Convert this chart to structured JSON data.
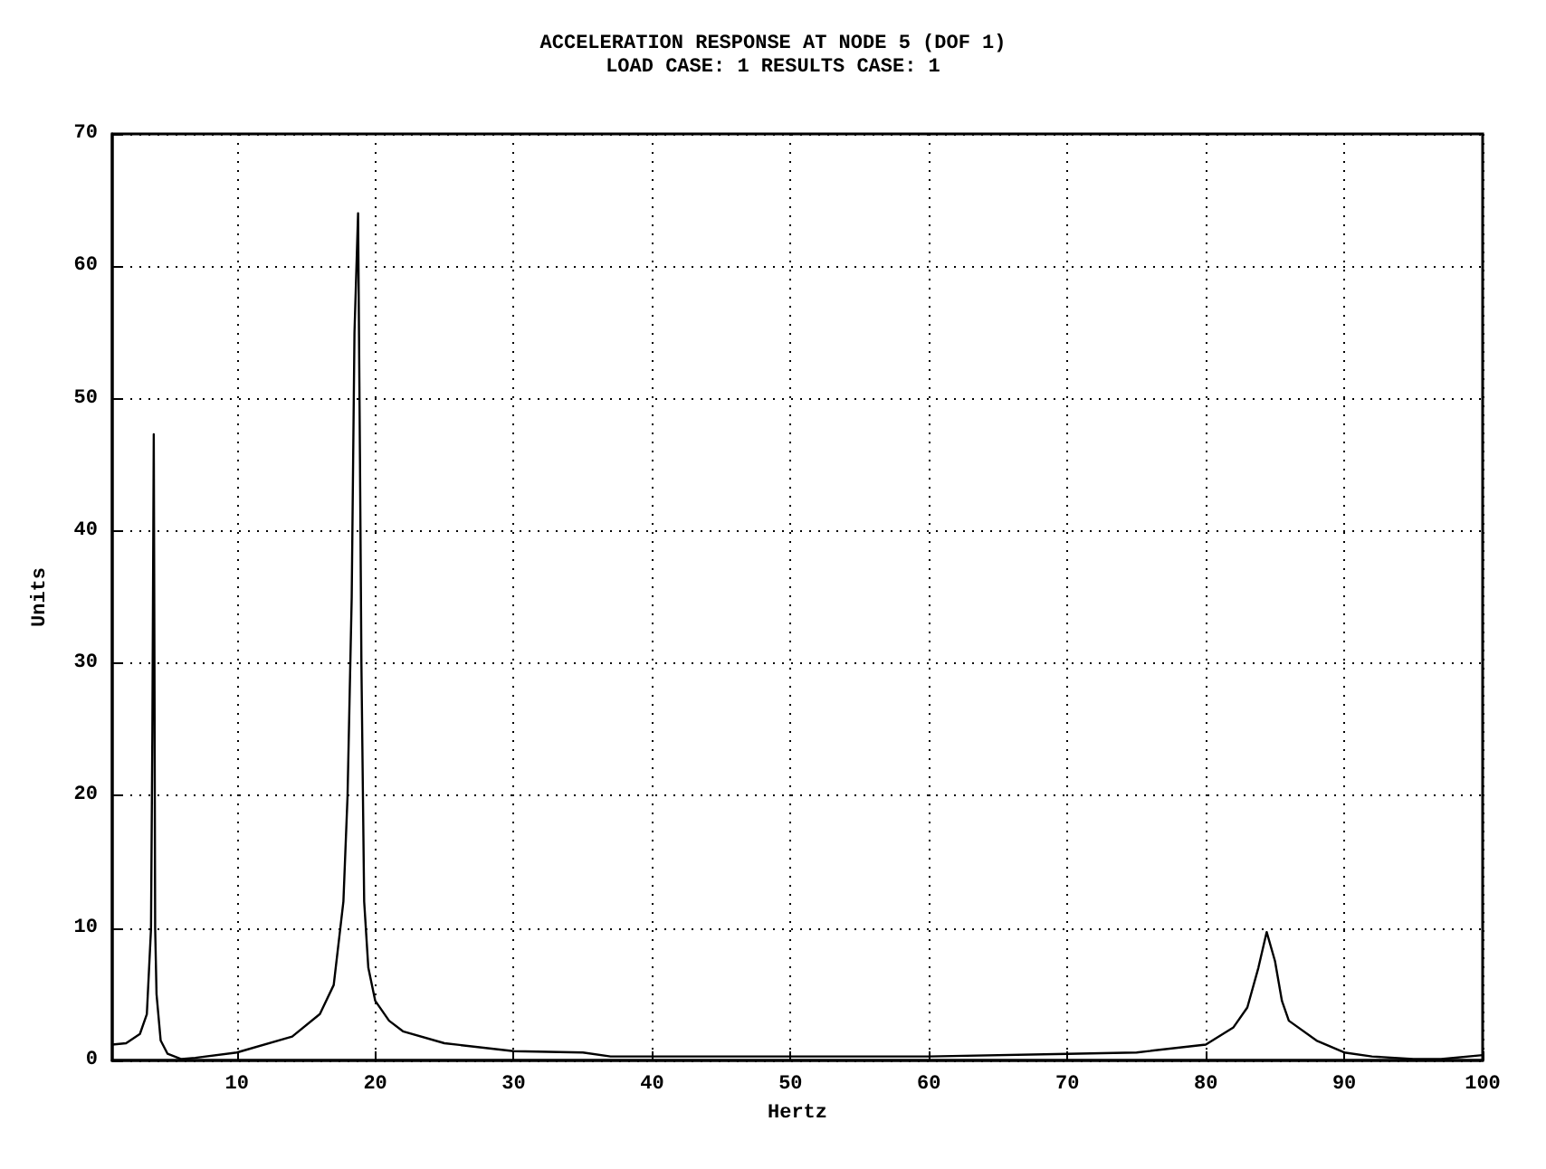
{
  "chart_data": {
    "type": "line",
    "title": "ACCELERATION RESPONSE AT NODE 5 (DOF 1)",
    "subtitle": "LOAD CASE: 1 RESULTS CASE: 1",
    "xlabel": "Hertz",
    "ylabel": "Units",
    "x": [
      1,
      2,
      3,
      3.5,
      3.8,
      3.9,
      4.0,
      4.05,
      4.1,
      4.2,
      4.5,
      5,
      6,
      7,
      10,
      14,
      16,
      17,
      17.7,
      18,
      18.3,
      18.5,
      18.76,
      18.9,
      19,
      19.2,
      19.5,
      20,
      21,
      22,
      25,
      30,
      35,
      37,
      40,
      50,
      60,
      70,
      75,
      80,
      82,
      83,
      83.8,
      84.4,
      85,
      85.5,
      86,
      88,
      90,
      92,
      95,
      97,
      100
    ],
    "series": [
      {
        "color": "#000000",
        "values": [
          1.2,
          1.3,
          2,
          3.5,
          9.9,
          25,
          47.3,
          30,
          10,
          5,
          1.5,
          0.5,
          0.1,
          0.2,
          0.6,
          1.8,
          3.5,
          5.7,
          12,
          20,
          35,
          55,
          64,
          45,
          30,
          12,
          7,
          4.5,
          3,
          2.2,
          1.3,
          0.7,
          0.6,
          0.3,
          0.3,
          0.3,
          0.3,
          0.5,
          0.6,
          1.2,
          2.5,
          4,
          7,
          9.7,
          7.5,
          4.5,
          3,
          1.5,
          0.6,
          0.3,
          0.1,
          0.1,
          0.4
        ]
      }
    ],
    "xlim": [
      1,
      100
    ],
    "xticks": [
      10,
      20,
      30,
      40,
      50,
      60,
      70,
      80,
      90,
      100
    ],
    "ylim": [
      0,
      70
    ],
    "yticks": [
      0,
      10,
      20,
      30,
      40,
      50,
      60,
      70
    ],
    "grid": true,
    "line_style": "solid",
    "marker": "none"
  }
}
